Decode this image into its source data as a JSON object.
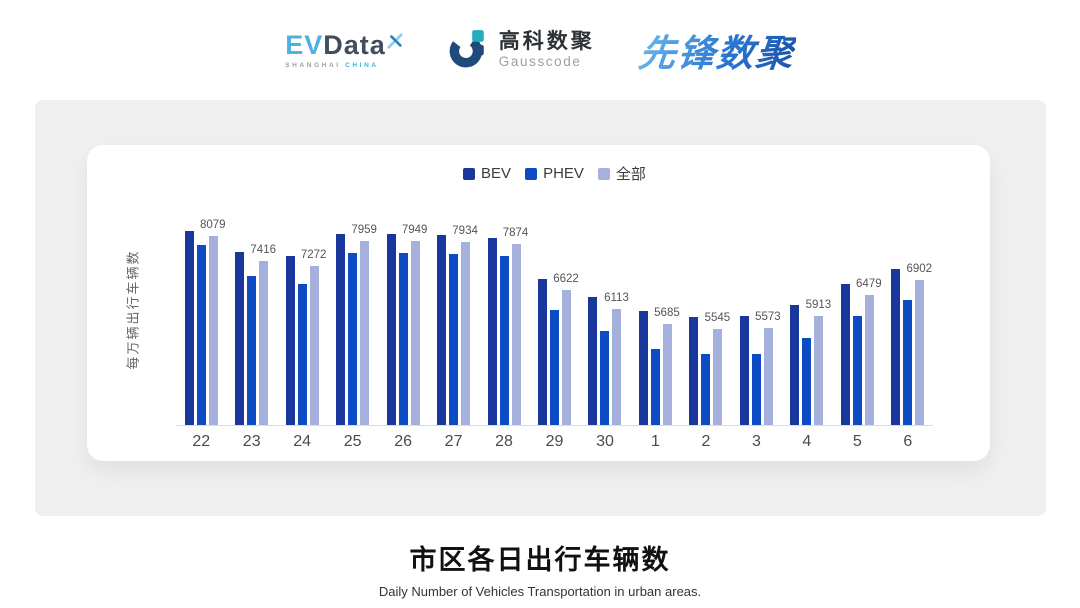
{
  "colors": {
    "evdata_blue": "#4FB0E3",
    "evdata_slate": "#414E60",
    "evdata_cyan": "#35B8DA",
    "gausscode_navy": "#1E4B7B",
    "gausscode_teal": "#23ACBC",
    "xianfeng_light": "#66B5EB",
    "xianfeng_dark": "#1C52A8",
    "panel_bg": "#F0F0F0"
  },
  "header": {
    "evdata": {
      "ev": "EV",
      "data": "Data",
      "sub_left": "SHANGHAI",
      "sub_right": "CHINA"
    },
    "gausscode": {
      "cn": "高科数聚",
      "en": "Gausscode"
    },
    "xianfeng": {
      "text": "先锋数聚"
    }
  },
  "chart_data": {
    "type": "bar",
    "title": "",
    "xlabel": "",
    "ylabel": "每万辆出行车辆数",
    "categories": [
      "22",
      "23",
      "24",
      "25",
      "26",
      "27",
      "28",
      "29",
      "30",
      "1",
      "2",
      "3",
      "4",
      "5",
      "6"
    ],
    "series": [
      {
        "name": "BEV",
        "color": "#1A379E",
        "labeled": false,
        "values": [
          8210,
          7650,
          7550,
          8140,
          8140,
          8110,
          8030,
          6910,
          6420,
          6040,
          5880,
          5900,
          6210,
          6770,
          7190
        ]
      },
      {
        "name": "PHEV",
        "color": "#0D4BC4",
        "labeled": false,
        "values": [
          7840,
          7000,
          6780,
          7620,
          7620,
          7590,
          7530,
          6080,
          5510,
          5020,
          4890,
          4890,
          5320,
          5900,
          6350
        ]
      },
      {
        "name": "全部",
        "color": "#A6B0DD",
        "labeled": true,
        "values": [
          8079,
          7416,
          7272,
          7959,
          7949,
          7934,
          7874,
          6622,
          6113,
          5685,
          5545,
          5573,
          5913,
          6479,
          6902
        ]
      }
    ],
    "ylim": [
      2950,
      9250
    ],
    "grid": false,
    "legend_position": "top"
  },
  "footer": {
    "title": "市区各日出行车辆数",
    "subtitle": "Daily Number of Vehicles Transportation in urban areas."
  }
}
